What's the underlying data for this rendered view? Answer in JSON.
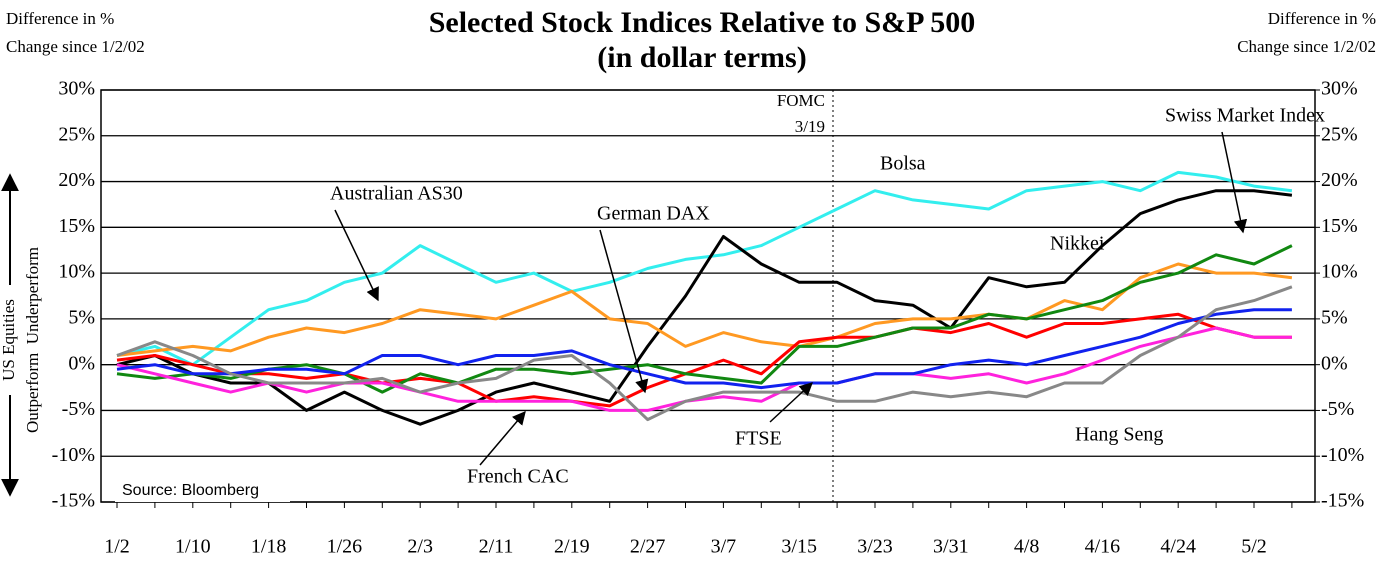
{
  "chart_data": {
    "type": "line",
    "title": "Selected Stock Indices Relative to S&P 500",
    "subtitle": "(in dollar terms)",
    "left_axis_label": [
      "Difference in %",
      "Change since 1/2/02"
    ],
    "right_axis_label": [
      "Difference in %",
      "Change since 1/2/02"
    ],
    "side_label": [
      "US Equities",
      "Outperform  Underperform"
    ],
    "annotations": [
      "FOMC",
      "3/19"
    ],
    "source": "Source: Bloomberg",
    "categories": [
      "1/2",
      null,
      "1/10",
      null,
      "1/18",
      null,
      "1/26",
      null,
      "2/3",
      null,
      "2/11",
      null,
      "2/19",
      null,
      "2/27",
      null,
      "3/7",
      null,
      "3/15",
      null,
      "3/23",
      null,
      "3/31",
      null,
      "4/8",
      null,
      "4/16",
      null,
      "4/24",
      null,
      "5/2",
      null
    ],
    "ylim": [
      -15,
      30
    ],
    "yticks": [
      {
        "value": -15,
        "label": "-15%"
      },
      {
        "value": -10,
        "label": "-10%"
      },
      {
        "value": -5,
        "label": "-5%"
      },
      {
        "value": 0,
        "label": "0%"
      },
      {
        "value": 5,
        "label": "5%"
      },
      {
        "value": 10,
        "label": "10%"
      },
      {
        "value": 15,
        "label": "15%"
      },
      {
        "value": 20,
        "label": "20%"
      },
      {
        "value": 25,
        "label": "25%"
      },
      {
        "value": 30,
        "label": "30%"
      }
    ],
    "y2lim": [
      -15,
      30
    ],
    "y2ticks": [
      {
        "value": -15,
        "label": "-15%"
      },
      {
        "value": -10,
        "label": "-10%"
      },
      {
        "value": -5,
        "label": "-5%"
      },
      {
        "value": 0,
        "label": "0%"
      },
      {
        "value": 5,
        "label": "5%"
      },
      {
        "value": 10,
        "label": "10%"
      },
      {
        "value": 15,
        "label": "15%"
      },
      {
        "value": 20,
        "label": "20%"
      },
      {
        "value": 25,
        "label": "25%"
      },
      {
        "value": 30,
        "label": "30%"
      }
    ],
    "grid": true,
    "series": [
      {
        "name": "Bolsa",
        "color": "#33eeee",
        "values": [
          1,
          2,
          0,
          3,
          6,
          7,
          9,
          10,
          13,
          11,
          9,
          10,
          8,
          9,
          10.5,
          11.5,
          12,
          13,
          15,
          17,
          19,
          18,
          17.5,
          17,
          19,
          19.5,
          20,
          19,
          21,
          20.5,
          19.5,
          19
        ]
      },
      {
        "name": "Nikkei",
        "color": "#000000",
        "values": [
          0,
          1,
          -1,
          -2,
          -2,
          -5,
          -3,
          -5,
          -6.5,
          -5,
          -3,
          -2,
          -3,
          -4,
          2,
          7.5,
          14,
          11,
          9,
          9,
          7,
          6.5,
          4,
          9.5,
          8.5,
          9,
          13,
          16.5,
          18,
          19,
          19,
          18.5
        ]
      },
      {
        "name": "Australian AS30",
        "color": "#ff9922",
        "values": [
          1,
          1.5,
          2,
          1.5,
          3,
          4,
          3.5,
          4.5,
          6,
          5.5,
          5,
          6.5,
          8,
          5,
          4.5,
          2,
          3.5,
          2.5,
          2,
          3,
          4.5,
          5,
          5,
          5.5,
          5,
          7,
          6,
          9.5,
          11,
          10,
          10,
          9.5
        ]
      },
      {
        "name": "German DAX",
        "color": "#ff0000",
        "values": [
          0.5,
          1,
          0,
          -1,
          -1,
          -1.5,
          -1,
          -2,
          -1.5,
          -2,
          -4,
          -3.5,
          -4,
          -4.5,
          -2.5,
          -1,
          0.5,
          -1,
          2.5,
          3,
          3,
          4,
          3.5,
          4.5,
          3,
          4.5,
          4.5,
          5,
          5.5,
          4,
          3,
          3
        ]
      },
      {
        "name": "Swiss Market Index",
        "color": "#118811",
        "values": [
          -1,
          -1.5,
          -1,
          -1.5,
          -0.5,
          0,
          -1,
          -3,
          -1,
          -2,
          -0.5,
          -0.5,
          -1,
          -0.5,
          0,
          -1,
          -1.5,
          -2,
          2,
          2,
          3,
          4,
          4,
          5.5,
          5,
          6,
          7,
          9,
          10,
          12,
          11,
          13
        ]
      },
      {
        "name": "French CAC",
        "color": "#ff22dd",
        "values": [
          0,
          -1,
          -2,
          -3,
          -2,
          -3,
          -2,
          -2,
          -3,
          -4,
          -4,
          -4,
          -4,
          -5,
          -5,
          -4,
          -3.5,
          -4,
          -2,
          -2,
          -1,
          -1,
          -1.5,
          -1,
          -2,
          -1,
          0.5,
          2,
          3,
          4,
          3,
          3
        ]
      },
      {
        "name": "FTSE",
        "color": "#1122ee",
        "values": [
          -0.5,
          0,
          -1,
          -1,
          -0.5,
          -0.5,
          -1,
          1,
          1,
          0,
          1,
          1,
          1.5,
          0,
          -1,
          -2,
          -2,
          -2.5,
          -2,
          -2,
          -1,
          -1,
          0,
          0.5,
          0,
          1,
          2,
          3,
          4.5,
          5.5,
          6,
          6
        ]
      },
      {
        "name": "Hang Seng",
        "color": "#888888",
        "values": [
          1,
          2.5,
          1,
          -1,
          -2,
          -2,
          -2,
          -1.5,
          -3,
          -2,
          -1.5,
          0.5,
          1,
          -2,
          -6,
          -4,
          -3,
          -3,
          -3,
          -4,
          -4,
          -3,
          -3.5,
          -3,
          -3.5,
          -2,
          -2,
          1,
          3,
          6,
          7,
          8.5
        ]
      }
    ]
  }
}
